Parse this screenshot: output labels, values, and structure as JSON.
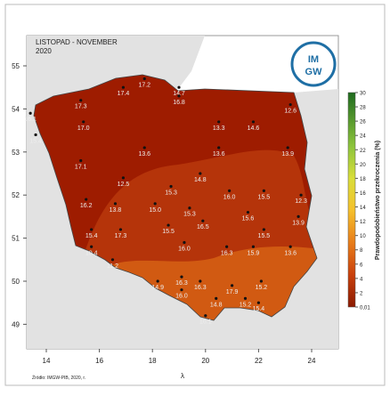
{
  "header": {
    "title": "LISTOPAD - NOVEMBER",
    "year": "2020",
    "logo": [
      "IM",
      "GW"
    ]
  },
  "axes": {
    "x_label": "λ",
    "xticks": [
      14,
      16,
      18,
      20,
      22,
      24
    ],
    "yticks": [
      49,
      50,
      51,
      52,
      53,
      54,
      55
    ]
  },
  "colorbar": {
    "label": "Prawdopodobieństwo przekroczenia (%)",
    "ticks": [
      {
        "value": 0.01,
        "label": "0,01"
      },
      2,
      4,
      6,
      8,
      10,
      12,
      14,
      16,
      18,
      20,
      22,
      24,
      26,
      28,
      30
    ]
  },
  "stations": {
    "lon": [
      19.0,
      16.9,
      17.7,
      19.0,
      15.3,
      13.4,
      15.4,
      20.5,
      21.8,
      23.2,
      13.6,
      17.7,
      20.5,
      23.1,
      15.3,
      16.9,
      19.8,
      18.7,
      20.9,
      22.2,
      15.5,
      16.6,
      18.1,
      19.4,
      23.6,
      21.6,
      23.5,
      19.9,
      18.6,
      22.2,
      16.8,
      15.7,
      15.7,
      19.2,
      20.8,
      21.8,
      23.2,
      16.5,
      19.1,
      18.2,
      19.8,
      21.0,
      22.1,
      19.1,
      20.4,
      21.5,
      22.0,
      20.0
    ],
    "lat": [
      54.5,
      54.5,
      54.7,
      54.3,
      54.2,
      53.9,
      53.7,
      53.7,
      53.7,
      54.1,
      53.4,
      53.1,
      53.1,
      53.1,
      52.8,
      52.4,
      52.5,
      52.2,
      52.1,
      52.1,
      51.9,
      51.8,
      51.8,
      51.7,
      52.0,
      51.6,
      51.5,
      51.4,
      51.3,
      51.2,
      51.2,
      51.2,
      50.8,
      50.9,
      50.8,
      50.8,
      50.8,
      50.5,
      50.1,
      50.0,
      50.0,
      49.9,
      50.0,
      49.8,
      49.6,
      49.6,
      49.5,
      49.2
    ],
    "values": [
      14.7,
      17.4,
      17.2,
      16.8,
      17.3,
      16.1,
      17.0,
      13.3,
      14.6,
      12.6,
      15.4,
      13.6,
      13.6,
      13.9,
      17.1,
      12.5,
      14.8,
      15.3,
      16,
      15.5,
      16.2,
      13.8,
      15,
      15.3,
      12.3,
      15.6,
      13.9,
      16.5,
      15.5,
      15.5,
      17.3,
      15.4,
      10.4,
      16,
      16.3,
      15.9,
      13.6,
      11.2,
      16.3,
      14.9,
      16.3,
      17.9,
      15.2,
      16,
      14.8,
      15.2,
      15.4,
      16.1
    ],
    "value_labels": [
      "14.7",
      "17.4",
      "17.2",
      "16.8",
      "17.3",
      "16.1",
      "17.0",
      "13.3",
      "14.6",
      "12.6",
      "15.4",
      "13.6",
      "13.6",
      "13.9",
      "17.1",
      "12.5",
      "14.8",
      "15.3",
      "16.0",
      "15.5",
      "16.2",
      "13.8",
      "15.0",
      "15.3",
      "12.3",
      "15.6",
      "13.9",
      "16.5",
      "15.5",
      "15.5",
      "17.3",
      "15.4",
      "10.4",
      "16.0",
      "16.3",
      "15.9",
      "13.6",
      "11.2",
      "16.3",
      "14.9",
      "16.3",
      "17.9",
      "15.2",
      "16.0",
      "14.8",
      "15.2",
      "15.4",
      "16.1"
    ]
  },
  "footer": "Źródło: IMGW-PIB, 2020, r."
}
